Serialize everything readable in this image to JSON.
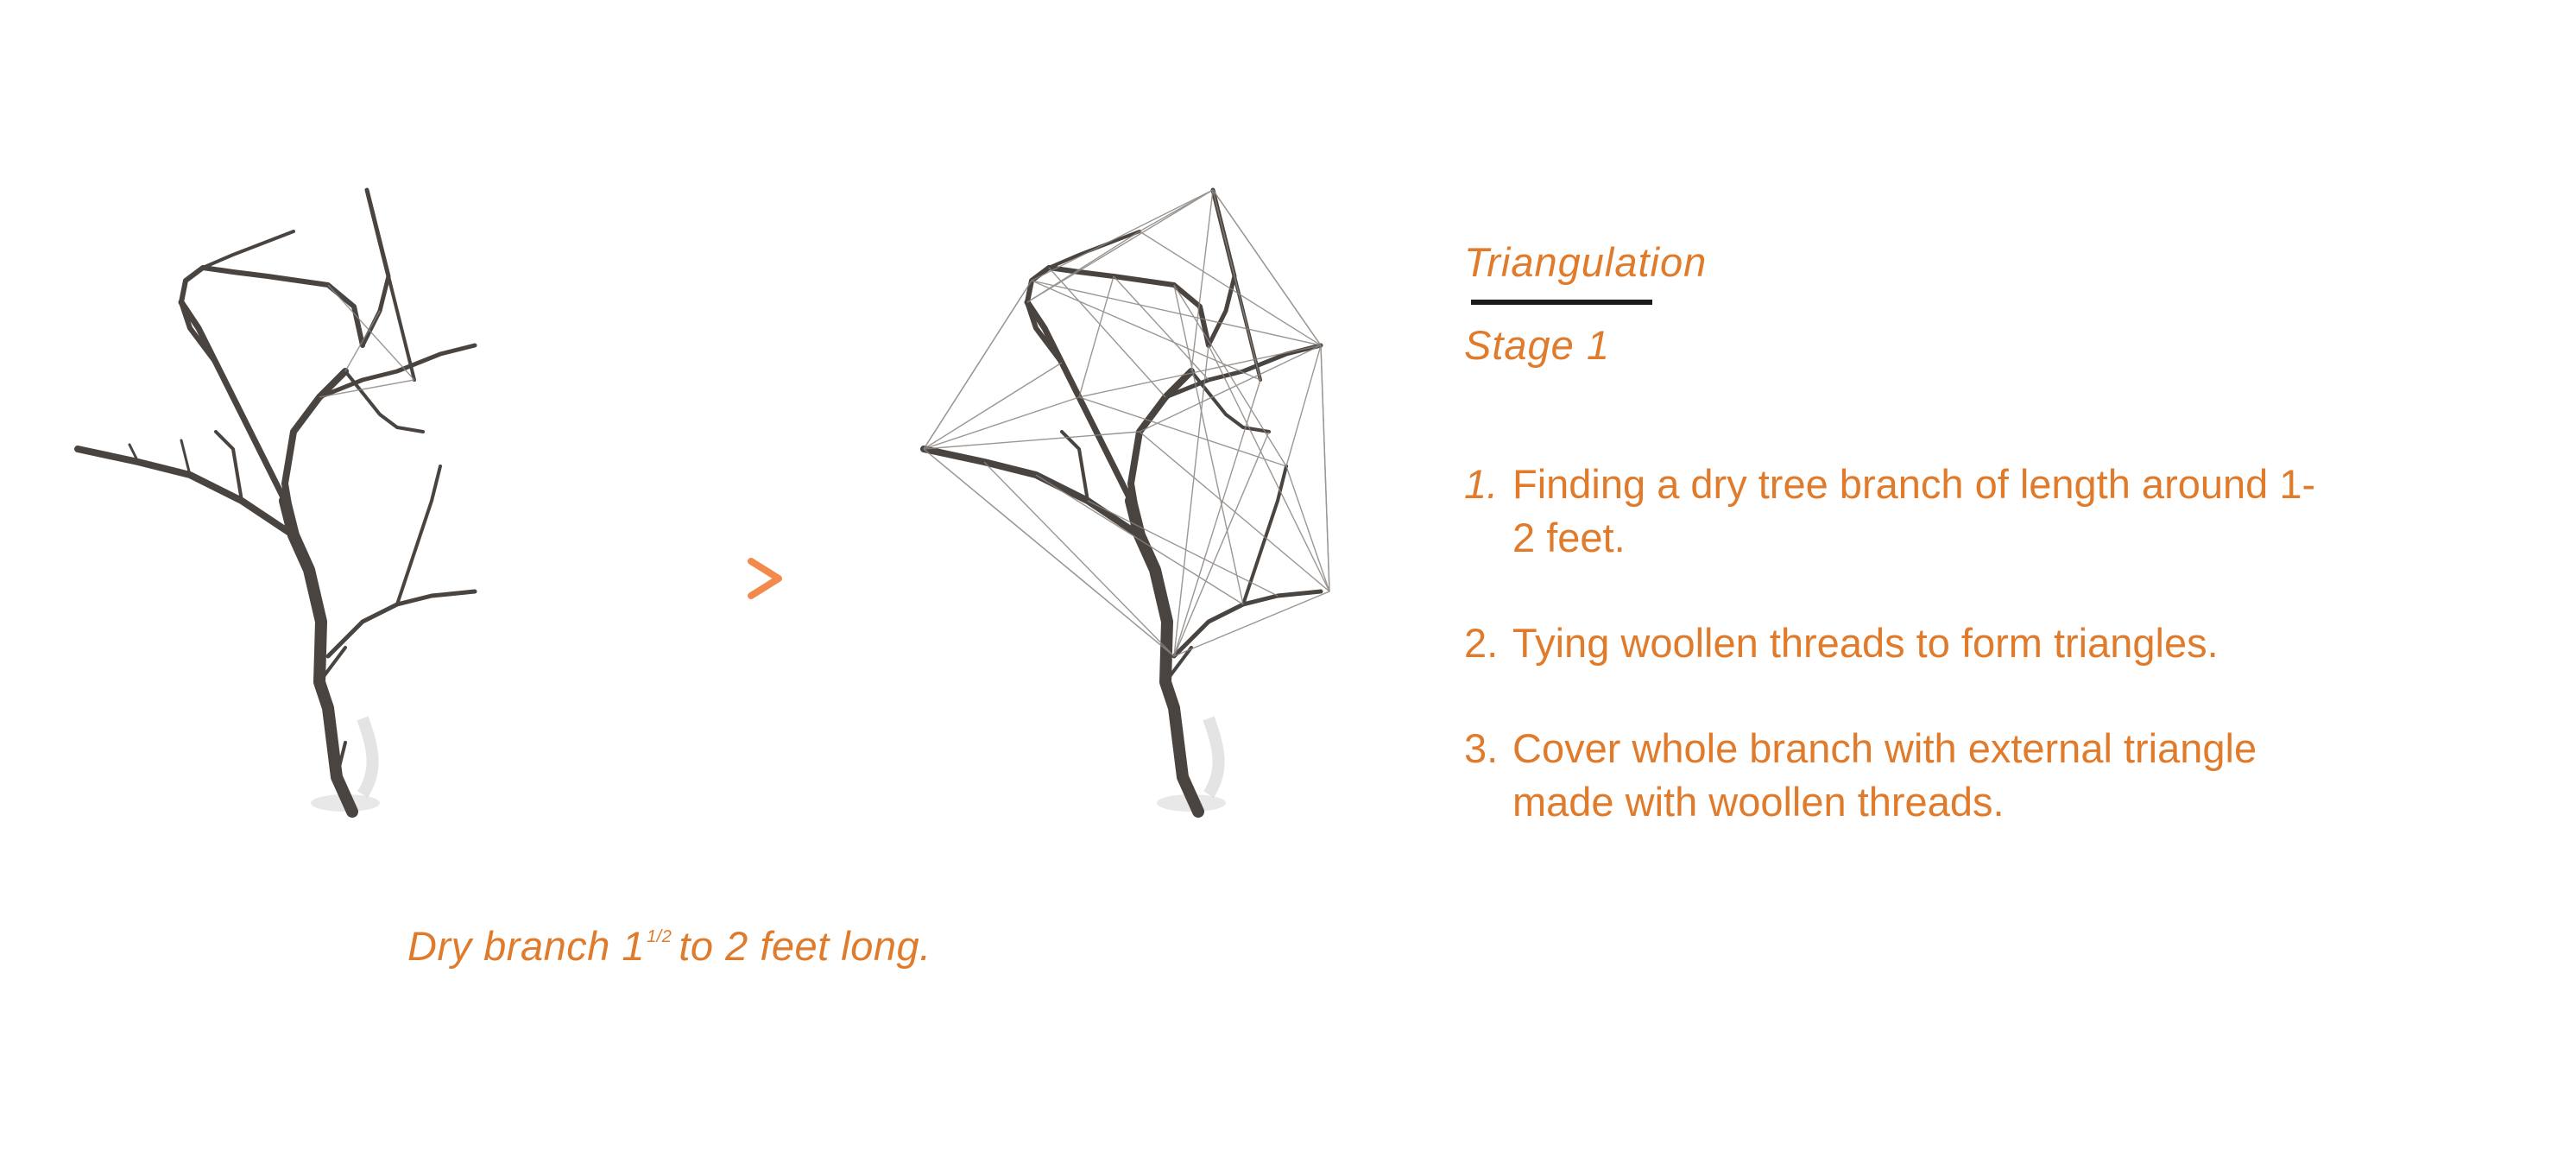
{
  "caption": {
    "prefix": "Dry branch 1",
    "fraction": "1/2",
    "suffix": "to 2 feet long."
  },
  "title": "Triangulation",
  "subtitle": "Stage 1",
  "steps": [
    {
      "number": "1.",
      "line1": "Finding a dry tree branch of length around 1-",
      "line2": "2  feet."
    },
    {
      "number": "2.",
      "line1": "Tying woollen threads to form triangles.",
      "line2": ""
    },
    {
      "number": "3.",
      "line1": "Cover whole branch with external triangle",
      "line2": "made  with woollen threads."
    }
  ],
  "colors": {
    "accent": "#e07b2c",
    "branch": "#4a4440",
    "thread": "#8a8480",
    "rule": "#1a1a1a"
  },
  "icons": {
    "arrow": "dotted-arrow-icon"
  }
}
